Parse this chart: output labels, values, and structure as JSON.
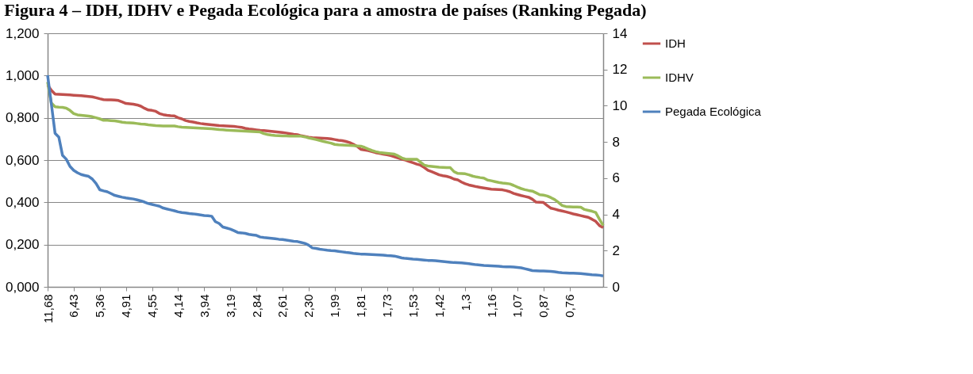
{
  "chart_data": {
    "type": "line",
    "title": "Figura 4 – IDH, IDHV e Pegada Ecológica para a amostra de países (Ranking Pegada)",
    "categories": [
      "11,68",
      null,
      null,
      null,
      null,
      null,
      null,
      "6,43",
      null,
      null,
      null,
      null,
      null,
      null,
      "5,36",
      null,
      null,
      null,
      null,
      null,
      null,
      "4,91",
      null,
      null,
      null,
      null,
      null,
      null,
      "4,55",
      null,
      null,
      null,
      null,
      null,
      null,
      "4,14",
      null,
      null,
      null,
      null,
      null,
      null,
      "3,94",
      null,
      null,
      null,
      null,
      null,
      null,
      "3,19",
      null,
      null,
      null,
      null,
      null,
      null,
      "2,84",
      null,
      null,
      null,
      null,
      null,
      null,
      "2,61",
      null,
      null,
      null,
      null,
      null,
      null,
      "2,30",
      null,
      null,
      null,
      null,
      null,
      null,
      "1,99",
      null,
      null,
      null,
      null,
      null,
      null,
      "1,81",
      null,
      null,
      null,
      null,
      null,
      null,
      "1,73",
      null,
      null,
      null,
      null,
      null,
      null,
      "1,53",
      null,
      null,
      null,
      null,
      null,
      null,
      "1,42",
      null,
      null,
      null,
      null,
      null,
      null,
      "1,3",
      null,
      null,
      null,
      null,
      null,
      null,
      "1,16",
      null,
      null,
      null,
      null,
      null,
      null,
      "1,07",
      null,
      null,
      null,
      null,
      null,
      null,
      "0,87",
      null,
      null,
      null,
      null,
      null,
      null,
      "0,76",
      null,
      null,
      null,
      null,
      null,
      null,
      null,
      null,
      null
    ],
    "series": [
      {
        "name": "IDH",
        "color": "#c0504d",
        "values": [
          0.955,
          0.93,
          0.912,
          0.911,
          0.91,
          0.909,
          0.908,
          0.907,
          0.906,
          0.905,
          0.903,
          0.901,
          0.899,
          0.895,
          0.89,
          0.886,
          0.885,
          0.885,
          0.884,
          0.882,
          0.875,
          0.868,
          0.866,
          0.864,
          0.861,
          0.855,
          0.845,
          0.837,
          0.835,
          0.831,
          0.82,
          0.815,
          0.812,
          0.81,
          0.809,
          0.8,
          0.795,
          0.787,
          0.783,
          0.78,
          0.776,
          0.773,
          0.771,
          0.769,
          0.767,
          0.765,
          0.763,
          0.762,
          0.761,
          0.76,
          0.759,
          0.757,
          0.755,
          0.75,
          0.747,
          0.745,
          0.743,
          0.741,
          0.74,
          0.738,
          0.736,
          0.734,
          0.732,
          0.73,
          0.728,
          0.725,
          0.722,
          0.72,
          0.715,
          0.712,
          0.708,
          0.706,
          0.705,
          0.704,
          0.703,
          0.702,
          0.7,
          0.697,
          0.694,
          0.692,
          0.688,
          0.683,
          0.675,
          0.665,
          0.651,
          0.648,
          0.645,
          0.64,
          0.635,
          0.632,
          0.628,
          0.625,
          0.621,
          0.616,
          0.61,
          0.604,
          0.6,
          0.593,
          0.587,
          0.581,
          0.576,
          0.565,
          0.552,
          0.545,
          0.538,
          0.53,
          0.526,
          0.523,
          0.518,
          0.51,
          0.506,
          0.496,
          0.488,
          0.482,
          0.478,
          0.474,
          0.471,
          0.468,
          0.465,
          0.462,
          0.461,
          0.46,
          0.459,
          0.455,
          0.45,
          0.442,
          0.437,
          0.432,
          0.428,
          0.424,
          0.415,
          0.401,
          0.4,
          0.399,
          0.385,
          0.372,
          0.368,
          0.363,
          0.359,
          0.355,
          0.35,
          0.345,
          0.341,
          0.337,
          0.333,
          0.329,
          0.32,
          0.31,
          0.29,
          0.28
        ]
      },
      {
        "name": "IDHV",
        "color": "#9bbb59",
        "values": [
          0.97,
          0.87,
          0.852,
          0.85,
          0.849,
          0.846,
          0.835,
          0.82,
          0.814,
          0.812,
          0.81,
          0.808,
          0.805,
          0.8,
          0.795,
          0.788,
          0.788,
          0.787,
          0.786,
          0.783,
          0.779,
          0.777,
          0.776,
          0.775,
          0.773,
          0.771,
          0.77,
          0.767,
          0.765,
          0.763,
          0.762,
          0.761,
          0.761,
          0.761,
          0.761,
          0.758,
          0.756,
          0.755,
          0.754,
          0.753,
          0.752,
          0.751,
          0.75,
          0.749,
          0.748,
          0.746,
          0.744,
          0.743,
          0.742,
          0.741,
          0.74,
          0.739,
          0.738,
          0.737,
          0.736,
          0.735,
          0.734,
          0.733,
          0.725,
          0.721,
          0.718,
          0.716,
          0.715,
          0.714,
          0.714,
          0.713,
          0.713,
          0.713,
          0.713,
          0.71,
          0.705,
          0.701,
          0.697,
          0.693,
          0.688,
          0.684,
          0.68,
          0.674,
          0.672,
          0.671,
          0.67,
          0.669,
          0.668,
          0.667,
          0.666,
          0.66,
          0.652,
          0.645,
          0.64,
          0.636,
          0.634,
          0.632,
          0.63,
          0.628,
          0.62,
          0.61,
          0.604,
          0.604,
          0.604,
          0.604,
          0.59,
          0.576,
          0.572,
          0.57,
          0.568,
          0.566,
          0.565,
          0.564,
          0.564,
          0.545,
          0.537,
          0.536,
          0.535,
          0.53,
          0.524,
          0.52,
          0.517,
          0.515,
          0.505,
          0.502,
          0.498,
          0.494,
          0.491,
          0.489,
          0.487,
          0.48,
          0.472,
          0.465,
          0.46,
          0.456,
          0.453,
          0.445,
          0.436,
          0.434,
          0.43,
          0.422,
          0.413,
          0.4,
          0.385,
          0.38,
          0.379,
          0.378,
          0.378,
          0.377,
          0.366,
          0.362,
          0.358,
          0.352,
          0.32,
          0.29
        ]
      },
      {
        "name": "Pegada Ecológica",
        "color": "#4f81bd",
        "axis": "y2",
        "values": [
          11.68,
          10.1,
          8.48,
          8.27,
          7.26,
          7.05,
          6.65,
          6.43,
          6.3,
          6.2,
          6.15,
          6.1,
          5.95,
          5.7,
          5.36,
          5.3,
          5.25,
          5.15,
          5.05,
          5.0,
          4.95,
          4.91,
          4.88,
          4.85,
          4.8,
          4.75,
          4.68,
          4.6,
          4.55,
          4.5,
          4.45,
          4.35,
          4.3,
          4.25,
          4.2,
          4.14,
          4.1,
          4.08,
          4.05,
          4.03,
          4.0,
          3.97,
          3.94,
          3.93,
          3.9,
          3.6,
          3.5,
          3.3,
          3.25,
          3.19,
          3.1,
          3.0,
          2.98,
          2.95,
          2.9,
          2.87,
          2.84,
          2.75,
          2.72,
          2.7,
          2.68,
          2.66,
          2.63,
          2.61,
          2.58,
          2.55,
          2.52,
          2.5,
          2.45,
          2.4,
          2.3,
          2.15,
          2.12,
          2.08,
          2.05,
          2.02,
          2.0,
          1.99,
          1.96,
          1.93,
          1.9,
          1.88,
          1.85,
          1.83,
          1.81,
          1.8,
          1.79,
          1.78,
          1.77,
          1.76,
          1.75,
          1.73,
          1.72,
          1.7,
          1.65,
          1.6,
          1.57,
          1.55,
          1.53,
          1.52,
          1.5,
          1.48,
          1.46,
          1.45,
          1.44,
          1.42,
          1.4,
          1.38,
          1.36,
          1.34,
          1.33,
          1.32,
          1.3,
          1.28,
          1.25,
          1.22,
          1.2,
          1.18,
          1.17,
          1.16,
          1.15,
          1.14,
          1.12,
          1.11,
          1.1,
          1.09,
          1.07,
          1.05,
          1.0,
          0.95,
          0.9,
          0.89,
          0.88,
          0.87,
          0.86,
          0.85,
          0.83,
          0.8,
          0.78,
          0.77,
          0.76,
          0.75,
          0.74,
          0.73,
          0.71,
          0.69,
          0.67,
          0.66,
          0.64,
          0.6
        ]
      }
    ],
    "ylim": [
      0,
      1.2
    ],
    "yticks": [
      {
        "value": 0,
        "label": "0,000"
      },
      {
        "value": 0.2,
        "label": "0,200"
      },
      {
        "value": 0.4,
        "label": "0,400"
      },
      {
        "value": 0.6,
        "label": "0,600"
      },
      {
        "value": 0.8,
        "label": "0,800"
      },
      {
        "value": 1.0,
        "label": "1,000"
      },
      {
        "value": 1.2,
        "label": "1,200"
      }
    ],
    "y2lim": [
      0,
      14
    ],
    "y2ticks": [
      0,
      2,
      4,
      6,
      8,
      10,
      12,
      14
    ],
    "grid": "y",
    "legend": "right",
    "line_style": "solid"
  }
}
